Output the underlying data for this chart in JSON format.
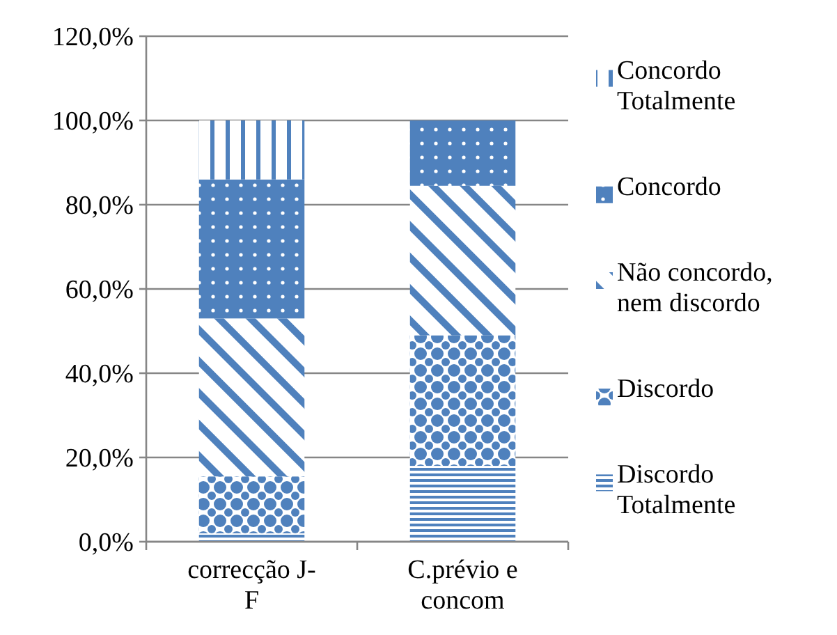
{
  "chart_data": {
    "type": "bar",
    "stacked": true,
    "categories": [
      "correcção J-F",
      "C.prévio e concom"
    ],
    "series": [
      {
        "name": "Discordo Totalmente",
        "color": "#4f81bd",
        "values": [
          2,
          18
        ]
      },
      {
        "name": "Discordo",
        "color": "#4f81bd",
        "values": [
          13.5,
          31
        ]
      },
      {
        "name": "Não concordo, nem discordo",
        "color": "#4f81bd",
        "values": [
          37.5,
          35.5
        ]
      },
      {
        "name": "Concordo",
        "color": "#4f81bd",
        "values": [
          33,
          15.5
        ]
      },
      {
        "name": "Concordo Totalmente",
        "color": "#4f81bd",
        "values": [
          14,
          0
        ]
      }
    ],
    "ylim": [
      0,
      120
    ],
    "yticks": [
      {
        "value": 0,
        "label": "0,0%"
      },
      {
        "value": 20,
        "label": "20,0%"
      },
      {
        "value": 40,
        "label": "40,0%"
      },
      {
        "value": 60,
        "label": "60,0%"
      },
      {
        "value": 80,
        "label": "80,0%"
      },
      {
        "value": 100,
        "label": "100,0%"
      },
      {
        "value": 120,
        "label": "120,0%"
      }
    ],
    "grid": "y",
    "legend": "right"
  }
}
